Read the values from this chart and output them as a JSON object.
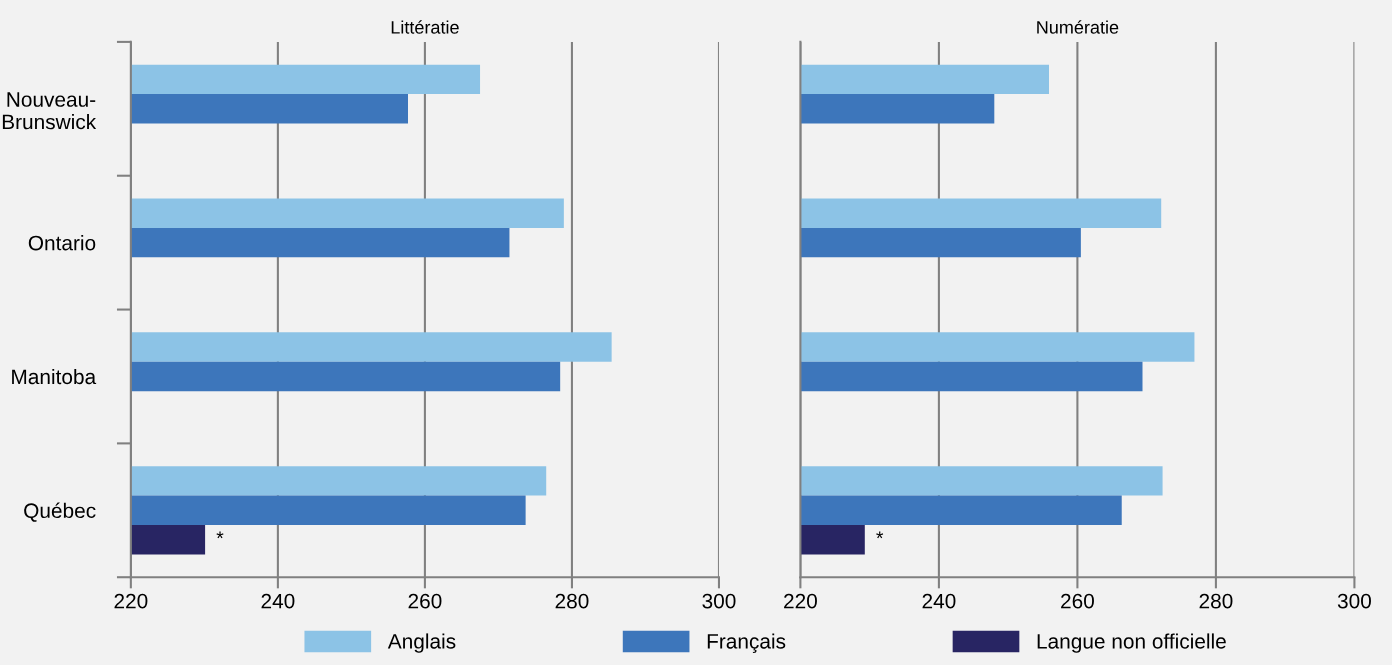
{
  "chart_data": [
    {
      "type": "bar",
      "orientation": "horizontal",
      "title": "Littératie",
      "categories": [
        "Nouveau-\nBrunswick",
        "Ontario",
        "Manitoba",
        "Québec"
      ],
      "series": [
        {
          "name": "Anglais",
          "color": "#8cc3e6",
          "values": [
            267.5,
            278.9,
            285.4,
            276.5
          ]
        },
        {
          "name": "Français",
          "color": "#3d76bb",
          "values": [
            257.7,
            271.5,
            278.4,
            273.7
          ]
        },
        {
          "name": "Langue non officielle",
          "color": "#282563",
          "values": [
            null,
            null,
            null,
            230.1
          ]
        }
      ],
      "xlim": [
        220,
        300
      ],
      "xticks": [
        220,
        240,
        260,
        280,
        300
      ],
      "grid": "x",
      "legend": "bottom",
      "annotations": [
        "*"
      ]
    },
    {
      "type": "bar",
      "orientation": "horizontal",
      "title": "Numératie",
      "categories": [
        null,
        null,
        null,
        null
      ],
      "series": [
        {
          "color": "#8cc3e6",
          "values": [
            255.9,
            272.1,
            276.9,
            272.3
          ]
        },
        {
          "color": "#3d76bb",
          "values": [
            248.0,
            260.5,
            269.4,
            266.4
          ]
        },
        {
          "color": "#282563",
          "values": [
            null,
            null,
            null,
            229.3
          ]
        }
      ],
      "xlim": [
        220,
        300
      ],
      "xticks": [
        220,
        240,
        260,
        280,
        300
      ],
      "grid": "x",
      "tick_labels": "x",
      "annotations": [
        "*"
      ]
    }
  ]
}
